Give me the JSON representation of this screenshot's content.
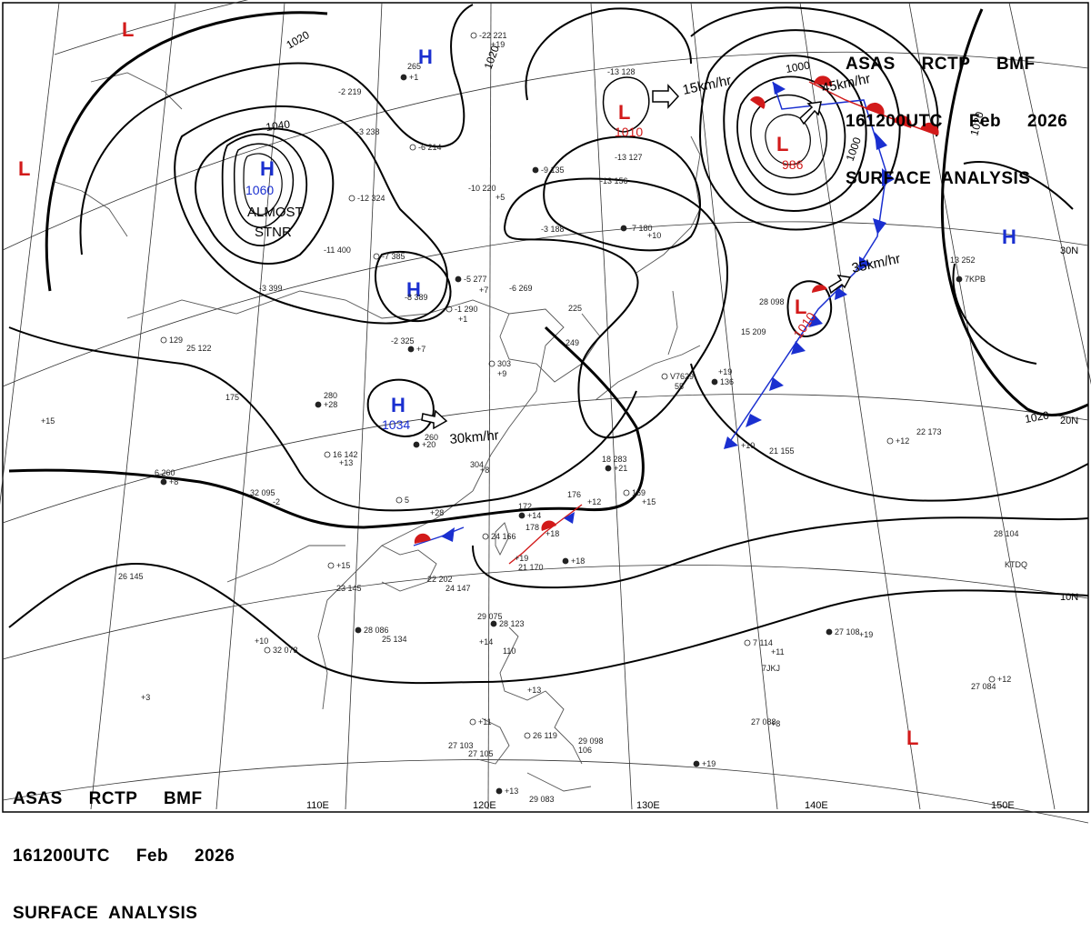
{
  "header_top": {
    "line1": "ASAS     RCTP     BMF",
    "line2": "161200UTC     Feb     2026",
    "line3": "SURFACE  ANALYSIS"
  },
  "header_bottom": {
    "line1": "ASAS     RCTP     BMF",
    "line2": "161200UTC     Feb     2026",
    "line3": "SURFACE  ANALYSIS"
  },
  "longitude_labels": [
    "110E",
    "120E",
    "130E",
    "140E",
    "150E"
  ],
  "latitude_labels": [
    "30N",
    "20N",
    "10N"
  ],
  "pressure_centers": [
    {
      "type": "H",
      "value": "1060",
      "color": "#1a2fd0"
    },
    {
      "type": "H",
      "value": "1034",
      "color": "#1a2fd0"
    },
    {
      "type": "H",
      "value": "",
      "color": "#1a2fd0"
    },
    {
      "type": "H",
      "value": "",
      "color": "#1a2fd0"
    },
    {
      "type": "H",
      "value": "",
      "color": "#1a2fd0"
    },
    {
      "type": "L",
      "value": "1010",
      "color": "#d21a1a"
    },
    {
      "type": "L",
      "value": "986",
      "color": "#d21a1a"
    },
    {
      "type": "L",
      "value": "1010",
      "color": "#d21a1a"
    },
    {
      "type": "L",
      "value": "",
      "color": "#d21a1a"
    },
    {
      "type": "L",
      "value": "",
      "color": "#d21a1a"
    },
    {
      "type": "L",
      "value": "",
      "color": "#d21a1a"
    }
  ],
  "isobar_labels": [
    "1040",
    "1020",
    "1020",
    "1000",
    "1000",
    "1020",
    "1020"
  ],
  "annotations": {
    "stationary": "ALMOST\nSTNR",
    "motion_1": "15km/hr",
    "motion_2": "45km/hr",
    "motion_3": "35km/hr",
    "motion_4": "30km/hr"
  },
  "station_plots": [
    "-22 221",
    "+19",
    "265",
    "+1",
    "-2  219",
    "-3  238",
    "-6  214",
    "-13  128",
    "-13  127",
    "-9  135",
    "-10  220",
    "+5",
    "-12  324",
    "-11  400",
    "-3  188",
    "-7  180",
    "+10",
    "-13  156",
    "-7  385",
    "-8  389",
    "-3  399",
    "-5  277",
    "+7",
    "-6  269",
    "-1  290",
    "+1",
    "-2  325",
    "+7",
    "225",
    "249",
    "303",
    "+9",
    "280",
    "+28",
    "175",
    "+15",
    "129",
    "25  122",
    "6  260",
    "+8",
    "32  095",
    "-2",
    "16  142",
    "+13",
    "260",
    "+20",
    "304",
    "+8",
    "5",
    "+28",
    "18  283",
    "+21",
    "176",
    "+12",
    "169",
    "+15",
    "172",
    "+14",
    "178",
    "+18",
    "24  166",
    "+19",
    "21  170",
    "+18",
    "22  202",
    "24  147",
    "+15",
    "23  145",
    "26  145",
    "28  086",
    "25  134",
    "+10",
    "32  073",
    "+3",
    "29  075",
    "28  123",
    "+14",
    "110",
    "+11",
    "27  103",
    "27  105",
    "+13",
    "29  083",
    "+13",
    "26  119",
    "29  098",
    "106",
    "+19",
    "28  098",
    "15  209",
    "V7629",
    "55",
    "+19",
    "136",
    "+10",
    "21  155",
    "+12",
    "22  173",
    "13  252",
    "7KPB",
    "28  104",
    "KTDQ",
    "7  114",
    "+11",
    "7JKJ",
    "27  108",
    "+19",
    "27  084",
    "+12",
    "27  088",
    "+8"
  ]
}
